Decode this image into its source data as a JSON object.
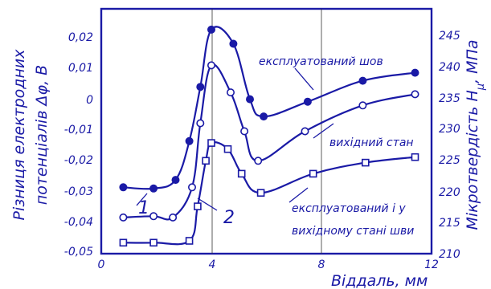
{
  "chart_data": {
    "type": "line",
    "xlabel": "Віддаль, мм",
    "ylabel_left_line1": "Різниця електродних",
    "ylabel_left_line2": "потенціалів Δφ, В",
    "ylabel_right": "Мікротвердість H",
    "ylabel_right_sub": "μ",
    "ylabel_right_unit": ", МПа",
    "x_ticks": [
      "0",
      "4",
      "8",
      "12"
    ],
    "xlim": [
      0,
      12
    ],
    "y_left_ticks": [
      "0,02",
      "0,01",
      "0",
      "-0,01",
      "-0,02",
      "-0,03",
      "-0,04",
      "-0,05"
    ],
    "y_left_lim": [
      -0.05,
      0.02
    ],
    "y_right_ticks": [
      "245",
      "240",
      "235",
      "230",
      "225",
      "220",
      "215",
      "210"
    ],
    "y_right_lim": [
      210,
      245
    ],
    "series": [
      {
        "marker": "filled-circle",
        "axis": "right",
        "x": [
          0.8,
          1.9,
          2.7,
          3.2,
          3.6,
          4.0,
          4.8,
          5.4,
          5.9,
          7.5,
          9.5,
          11.4
        ],
        "y": [
          220.0,
          219.8,
          221.2,
          227.5,
          236.3,
          245.6,
          243.3,
          234.3,
          231.5,
          233.9,
          237.3,
          238.6
        ]
      },
      {
        "marker": "open-circle",
        "axis": "right",
        "x": [
          0.8,
          1.9,
          2.6,
          3.3,
          3.6,
          4.0,
          4.7,
          5.2,
          5.7,
          7.4,
          9.5,
          11.4
        ],
        "y": [
          215.1,
          215.3,
          215.1,
          220.0,
          230.4,
          239.8,
          235.4,
          229.1,
          224.3,
          229.1,
          233.3,
          235.1
        ]
      },
      {
        "marker": "open-square",
        "axis": "right",
        "x": [
          0.8,
          1.9,
          3.2,
          3.5,
          3.8,
          4.0,
          4.6,
          5.1,
          5.8,
          7.7,
          9.6,
          11.4
        ],
        "y": [
          211.0,
          211.0,
          211.3,
          216.9,
          224.3,
          227.2,
          226.2,
          222.2,
          219.1,
          222.2,
          224.0,
          224.9
        ]
      }
    ],
    "annotations": [
      {
        "text": "експлуатований шов"
      },
      {
        "text": "вихідний стан"
      },
      {
        "text": "експлуатований і у"
      },
      {
        "text": "вихідному стані шви"
      },
      {
        "text": "1"
      },
      {
        "text": "2"
      }
    ],
    "colors": {
      "ink": "#1a1aa6",
      "grid": "#333333"
    }
  }
}
